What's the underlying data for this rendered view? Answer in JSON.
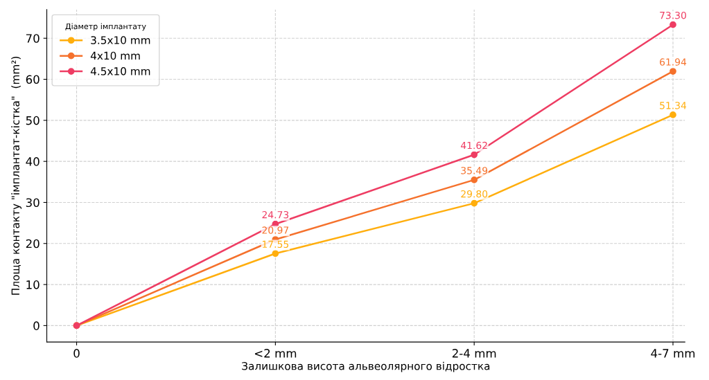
{
  "chart_data": {
    "type": "line",
    "xlabel": "Залишкова висота альвеолярного відростка",
    "ylabel": "Площа контакту \"імплантат-кістка\"  (mm²)",
    "legend_title": "Діаметр імплантату",
    "categories": [
      "0",
      "<2 mm",
      "2-4 mm",
      "4-7 mm"
    ],
    "series": [
      {
        "name": "3.5x10 mm",
        "color": "#ffae0d",
        "values": [
          0,
          17.55,
          29.8,
          51.34
        ],
        "value_labels": [
          null,
          "17.55",
          "29.80",
          "51.34"
        ]
      },
      {
        "name": "4x10 mm",
        "color": "#f5712c",
        "values": [
          0,
          20.97,
          35.49,
          61.94
        ],
        "value_labels": [
          null,
          "20.97",
          "35.49",
          "61.94"
        ]
      },
      {
        "name": "4.5x10 mm",
        "color": "#ee3d63",
        "values": [
          0,
          24.73,
          41.62,
          73.3
        ],
        "value_labels": [
          null,
          "24.73",
          "41.62",
          "73.30"
        ]
      }
    ],
    "ylim": [
      -4,
      77
    ],
    "yticks": [
      0,
      10,
      20,
      30,
      40,
      50,
      60,
      70
    ],
    "grid": true,
    "legend": "top left",
    "marker": "circle",
    "line_style": "solid"
  }
}
